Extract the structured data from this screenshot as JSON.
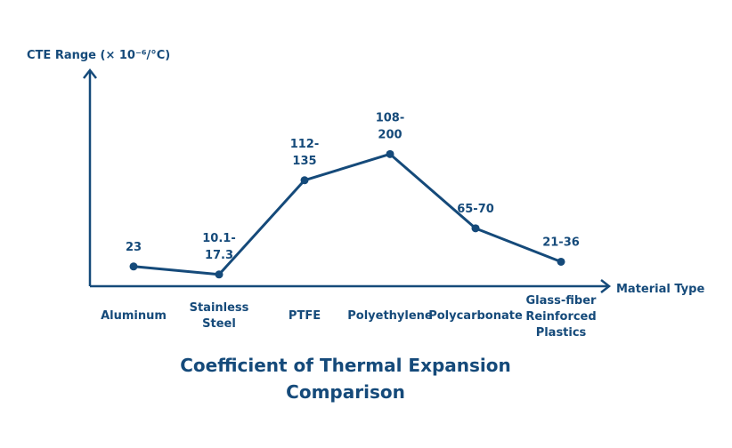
{
  "colors": {
    "accent": "#154a7a",
    "background": "#ffffff"
  },
  "chart_data": {
    "type": "line",
    "title_lines": [
      "Coefficient of Thermal Expansion",
      "Comparison"
    ],
    "xlabel": "Material Type",
    "ylabel": "CTE Range (× 10⁻⁶/°C)",
    "grid": false,
    "categories": [
      [
        "Aluminum"
      ],
      [
        "Stainless",
        "Steel"
      ],
      [
        "PTFE"
      ],
      [
        "Polyethylene"
      ],
      [
        "Polycarbonate"
      ],
      [
        "Glass-fiber",
        "Reinforced",
        "Plastics"
      ]
    ],
    "values": [
      23,
      13.7,
      123.5,
      154,
      67.5,
      28.5
    ],
    "data_labels": [
      [
        "23"
      ],
      [
        "10.1-",
        "17.3"
      ],
      [
        "112-",
        "135"
      ],
      [
        "108-",
        "200"
      ],
      [
        "65-70"
      ],
      [
        "21-36"
      ]
    ],
    "ylim": [
      0,
      230
    ]
  }
}
